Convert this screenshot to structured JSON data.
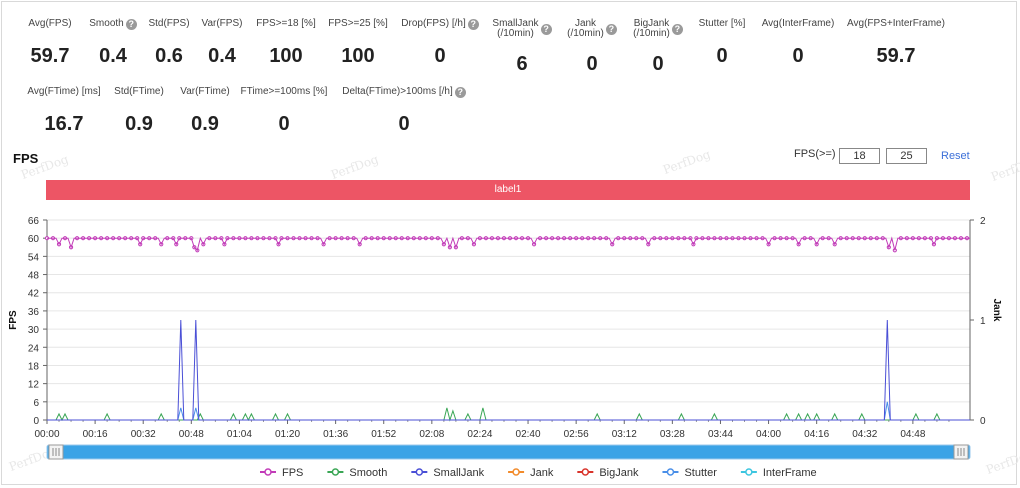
{
  "metrics_row1": [
    {
      "label": "Avg(FPS)",
      "value": "59.7",
      "help": false
    },
    {
      "label": "Smooth",
      "value": "0.4",
      "help": true
    },
    {
      "label": "Std(FPS)",
      "value": "0.6",
      "help": false
    },
    {
      "label": "Var(FPS)",
      "value": "0.4",
      "help": false
    },
    {
      "label": "FPS>=18 [%]",
      "value": "100",
      "help": false
    },
    {
      "label": "FPS>=25 [%]",
      "value": "100",
      "help": false
    },
    {
      "label": "Drop(FPS) [/h]",
      "value": "0",
      "help": true
    },
    {
      "label": "SmallJank\n(/10min)",
      "value": "6",
      "help": true
    },
    {
      "label": "Jank\n(/10min)",
      "value": "0",
      "help": true
    },
    {
      "label": "BigJank\n(/10min)",
      "value": "0",
      "help": true
    },
    {
      "label": "Stutter [%]",
      "value": "0",
      "help": false
    },
    {
      "label": "Avg(InterFrame)",
      "value": "0",
      "help": false
    },
    {
      "label": "Avg(FPS+InterFrame)",
      "value": "59.7",
      "help": false
    }
  ],
  "metrics_row2": [
    {
      "label": "Avg(FTime) [ms]",
      "value": "16.7",
      "help": false
    },
    {
      "label": "Std(FTime)",
      "value": "0.9",
      "help": false
    },
    {
      "label": "Var(FTime)",
      "value": "0.9",
      "help": false
    },
    {
      "label": "FTime>=100ms [%]",
      "value": "0",
      "help": false
    },
    {
      "label": "Delta(FTime)>100ms [/h]",
      "value": "0",
      "help": true
    }
  ],
  "help_glyph": "?",
  "section_title": "FPS",
  "threshold": {
    "label": "FPS(>=)",
    "low": "18",
    "high": "25",
    "reset": "Reset"
  },
  "watermark": "PerfDog",
  "chart_data": {
    "type": "line",
    "band_label": "label1",
    "band_color": "#ed5565",
    "ylabel": "FPS",
    "y2label": "Jank",
    "ylim": [
      0,
      66
    ],
    "yticks": [
      0,
      6,
      12,
      18,
      24,
      30,
      36,
      42,
      48,
      54,
      60,
      66
    ],
    "y2lim": [
      0,
      2
    ],
    "y2ticks": [
      0,
      1,
      2
    ],
    "xlim": [
      0,
      307
    ],
    "xticks": [
      "00:00",
      "00:16",
      "00:32",
      "00:48",
      "01:04",
      "01:20",
      "01:36",
      "01:52",
      "02:08",
      "02:24",
      "02:40",
      "02:56",
      "03:12",
      "03:28",
      "03:44",
      "04:00",
      "04:16",
      "04:32",
      "04:48"
    ],
    "grid": true,
    "legend_position": "bottom",
    "series": [
      {
        "name": "FPS",
        "axis": "left",
        "color": "#c23bb8",
        "marker": "circle",
        "baseline": 60,
        "dips": [
          [
            4,
            58
          ],
          [
            8,
            57
          ],
          [
            31,
            58
          ],
          [
            38,
            58
          ],
          [
            43,
            58
          ],
          [
            49,
            57
          ],
          [
            50,
            56
          ],
          [
            52,
            58
          ],
          [
            59,
            58
          ],
          [
            77,
            58
          ],
          [
            92,
            58
          ],
          [
            104,
            58
          ],
          [
            132,
            58
          ],
          [
            134,
            57
          ],
          [
            136,
            57
          ],
          [
            142,
            58
          ],
          [
            162,
            58
          ],
          [
            188,
            58
          ],
          [
            200,
            58
          ],
          [
            215,
            58
          ],
          [
            240,
            58
          ],
          [
            250,
            58
          ],
          [
            256,
            58
          ],
          [
            262,
            58
          ],
          [
            280,
            57
          ],
          [
            282,
            56
          ],
          [
            295,
            58
          ]
        ]
      },
      {
        "name": "Smooth",
        "axis": "left",
        "color": "#3aa655",
        "baseline": 0,
        "peaks": [
          [
            4,
            2
          ],
          [
            6,
            2
          ],
          [
            20,
            2
          ],
          [
            38,
            2
          ],
          [
            51,
            2
          ],
          [
            62,
            2
          ],
          [
            66,
            2
          ],
          [
            68,
            2
          ],
          [
            76,
            2
          ],
          [
            80,
            2
          ],
          [
            133,
            4
          ],
          [
            135,
            3
          ],
          [
            140,
            2
          ],
          [
            145,
            4
          ],
          [
            183,
            2
          ],
          [
            197,
            2
          ],
          [
            211,
            2
          ],
          [
            222,
            2
          ],
          [
            246,
            2
          ],
          [
            250,
            2
          ],
          [
            253,
            2
          ],
          [
            256,
            2
          ],
          [
            262,
            2
          ],
          [
            271,
            2
          ],
          [
            289,
            2
          ],
          [
            296,
            2
          ]
        ]
      },
      {
        "name": "SmallJank",
        "axis": "right",
        "color": "#4a4fd6",
        "baseline": 0,
        "peaks": [
          [
            44.5,
            1
          ],
          [
            49.5,
            1
          ],
          [
            279.5,
            1
          ]
        ]
      },
      {
        "name": "Jank",
        "axis": "right",
        "color": "#f28b2b",
        "baseline": 0,
        "peaks": []
      },
      {
        "name": "BigJank",
        "axis": "right",
        "color": "#d9342b",
        "baseline": 0,
        "peaks": []
      },
      {
        "name": "Stutter",
        "axis": "left",
        "color": "#4a8fe8",
        "baseline": 0,
        "peaks": [
          [
            44.5,
            4
          ],
          [
            49.5,
            4
          ],
          [
            279.5,
            6
          ]
        ]
      },
      {
        "name": "InterFrame",
        "axis": "left",
        "color": "#3cc6e0",
        "baseline": 0,
        "peaks": []
      }
    ]
  }
}
